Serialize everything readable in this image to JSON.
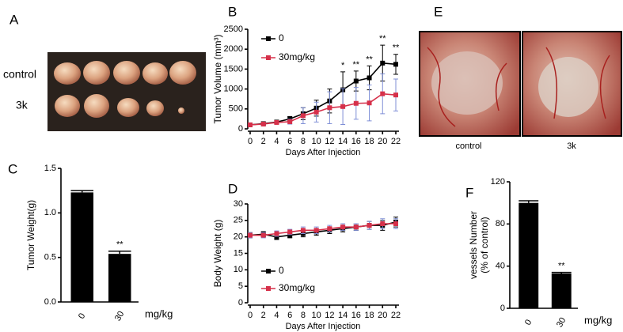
{
  "panel_a": {
    "letter": "A",
    "row_labels": [
      "control",
      "3k"
    ]
  },
  "panel_e": {
    "letter": "E",
    "captions": [
      "control",
      "3k"
    ]
  },
  "chart_data": [
    {
      "type": "line",
      "panel": "B",
      "ylabel": "Tumor Volume (mm³)",
      "xlabel": "Days After Injection",
      "x": [
        0,
        2,
        4,
        6,
        8,
        10,
        12,
        14,
        16,
        18,
        20,
        22
      ],
      "xlim": [
        0,
        22
      ],
      "xticks": [
        0,
        2,
        4,
        6,
        8,
        10,
        12,
        14,
        16,
        18,
        20,
        22
      ],
      "ylim": [
        0,
        2500
      ],
      "yticks": [
        0,
        500,
        1000,
        1500,
        2000,
        2500
      ],
      "legend": "upper left",
      "series": [
        {
          "name": "0",
          "color": "#000000",
          "error_color": "#000000",
          "values": [
            100,
            130,
            170,
            250,
            380,
            520,
            700,
            980,
            1200,
            1280,
            1650,
            1620
          ],
          "errors": [
            30,
            30,
            40,
            60,
            150,
            200,
            300,
            450,
            250,
            300,
            450,
            250
          ]
        },
        {
          "name": "30mg/kg",
          "color": "#d6304a",
          "error_color": "#7f8fd6",
          "values": [
            100,
            120,
            160,
            180,
            330,
            420,
            530,
            560,
            640,
            650,
            880,
            850
          ],
          "errors": [
            30,
            30,
            40,
            60,
            200,
            250,
            400,
            450,
            400,
            450,
            500,
            400
          ]
        }
      ],
      "annotations": [
        {
          "text": "*",
          "x": 14
        },
        {
          "text": "**",
          "x": 16
        },
        {
          "text": "**",
          "x": 18
        },
        {
          "text": "**",
          "x": 20
        },
        {
          "text": "**",
          "x": 22
        }
      ]
    },
    {
      "type": "bar",
      "panel": "C",
      "ylabel": "Tumor Weight(g)",
      "unit_label": "mg/kg",
      "color": "#000000",
      "categories": [
        "0",
        "30"
      ],
      "values": [
        1.23,
        0.54
      ],
      "errors": [
        0.02,
        0.03
      ],
      "ylim": [
        0,
        1.5
      ],
      "yticks": [
        {
          "value": 0,
          "label": "0.0"
        },
        {
          "value": 0.5,
          "label": "0.5"
        },
        {
          "value": 1,
          "label": "1.0"
        },
        {
          "value": 1.5,
          "label": "1.5"
        }
      ],
      "annotations": [
        {
          "text": "**",
          "x": "30"
        }
      ]
    },
    {
      "type": "line",
      "panel": "D",
      "ylabel": "Body Weight (g)",
      "xlabel": "Days After Injection",
      "x": [
        0,
        2,
        4,
        6,
        8,
        10,
        12,
        14,
        16,
        18,
        20,
        22
      ],
      "xlim": [
        0,
        22
      ],
      "xticks": [
        0,
        2,
        4,
        6,
        8,
        10,
        12,
        14,
        16,
        18,
        20,
        22
      ],
      "ylim": [
        0,
        30
      ],
      "yticks": [
        0,
        5,
        10,
        15,
        20,
        25,
        30
      ],
      "legend": "lower left",
      "series": [
        {
          "name": "0",
          "color": "#000000",
          "error_color": "#000000",
          "values": [
            20.5,
            20.8,
            20,
            20.5,
            21,
            21.5,
            22,
            22.5,
            23,
            23.5,
            23.5,
            24.5
          ],
          "errors": [
            0.8,
            0.8,
            0.8,
            0.8,
            1,
            1,
            1,
            1,
            1,
            1.2,
            1.5,
            1.5
          ]
        },
        {
          "name": "30mg/kg",
          "color": "#d6304a",
          "error_color": "#7f8fd6",
          "values": [
            20.5,
            20.5,
            21,
            21.5,
            22,
            22,
            22.5,
            23,
            23,
            23.5,
            24,
            24
          ],
          "errors": [
            0.8,
            0.8,
            0.8,
            0.8,
            1,
            1,
            1,
            1,
            1,
            1.2,
            1.5,
            1.5
          ]
        }
      ]
    },
    {
      "type": "bar",
      "panel": "F",
      "ylabel": [
        "vessels Number",
        "(% of control)"
      ],
      "unit_label": "mg/kg",
      "color": "#000000",
      "categories": [
        "0",
        "30"
      ],
      "values": [
        100,
        33
      ],
      "errors": [
        2,
        1
      ],
      "ylim": [
        0,
        120
      ],
      "yticks": [
        0,
        40,
        80,
        120
      ],
      "annotations": [
        {
          "text": "**",
          "x": "30"
        }
      ]
    }
  ]
}
